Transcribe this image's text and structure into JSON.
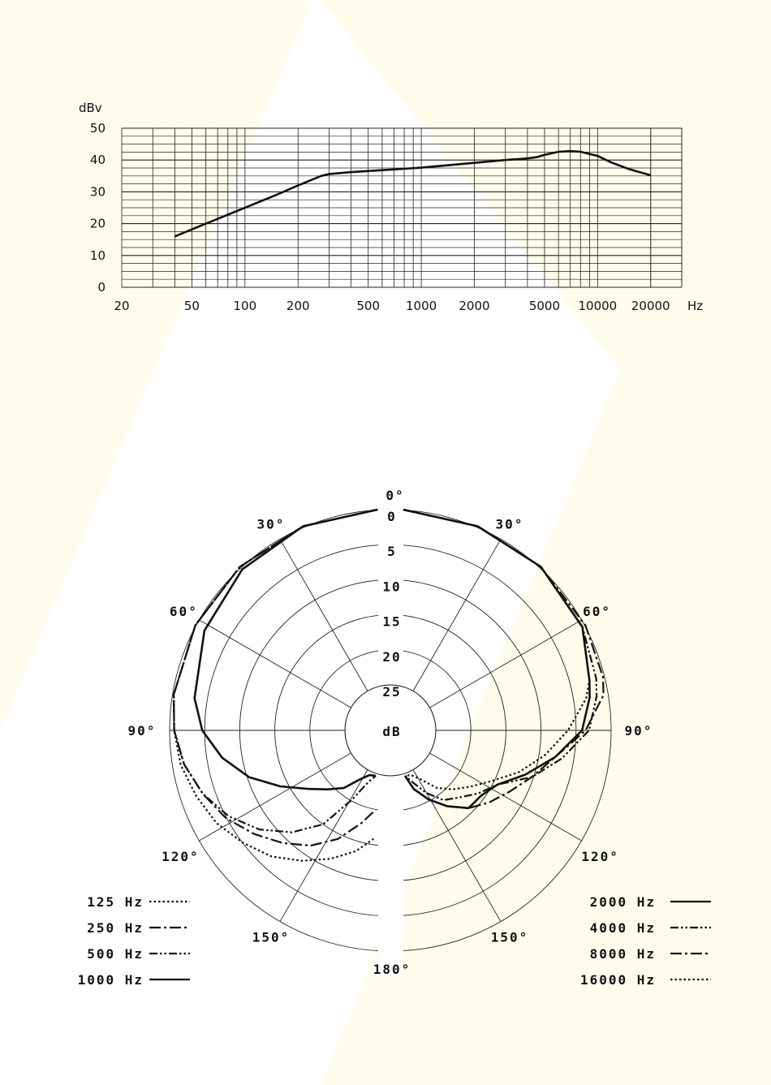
{
  "colors": {
    "background_tint": "#fffcec",
    "ink": "#111111",
    "grid": "#222222"
  },
  "chart_data": [
    {
      "type": "line",
      "title": "",
      "xlabel": "Hz",
      "ylabel": "dBv",
      "xscale": "log",
      "xlim": [
        20,
        30000
      ],
      "ylim": [
        0,
        50
      ],
      "x_tick_labels": [
        "20",
        "50",
        "100",
        "200",
        "500",
        "1000",
        "2000",
        "5000",
        "10000",
        "20000"
      ],
      "y_tick_labels": [
        "0",
        "10",
        "20",
        "30",
        "40",
        "50"
      ],
      "grid": true,
      "series": [
        {
          "x": [
            40,
            60,
            100,
            150,
            200,
            270,
            300,
            400,
            600,
            1000,
            2000,
            3000,
            4000,
            4500,
            5000,
            6000,
            7000,
            8000,
            10000,
            12000,
            15000,
            20000
          ],
          "y": [
            16,
            20,
            25,
            29,
            32,
            35,
            35.6,
            36.2,
            36.8,
            37.6,
            39.1,
            40,
            40.5,
            40.9,
            41.6,
            42.6,
            42.8,
            42.6,
            41.3,
            39.2,
            37.2,
            35.2
          ]
        }
      ]
    },
    {
      "type": "polar",
      "title": "",
      "radial_unit_label": "dB",
      "radial_tick_labels": [
        "0",
        "5",
        "10",
        "15",
        "20",
        "25"
      ],
      "angle_labels": [
        "0°",
        "30°",
        "60°",
        "90°",
        "120°",
        "150°",
        "180°"
      ],
      "grid": true,
      "series": [
        {
          "name": "125 Hz",
          "style": "dotted",
          "side": "left",
          "points": [
            [
              0,
              0
            ],
            [
              20,
              0.5
            ],
            [
              40,
              1
            ],
            [
              60,
              1.5
            ],
            [
              80,
              2
            ],
            [
              90,
              2.5
            ],
            [
              100,
              3
            ],
            [
              110,
              4
            ],
            [
              120,
              5
            ],
            [
              130,
              6.5
            ],
            [
              140,
              8
            ],
            [
              150,
              10
            ],
            [
              160,
              12
            ],
            [
              170,
              14
            ],
            [
              178,
              16
            ]
          ]
        },
        {
          "name": "250 Hz",
          "style": "dash-dot",
          "side": "left",
          "points": [
            [
              0,
              0
            ],
            [
              20,
              0.5
            ],
            [
              40,
              1
            ],
            [
              60,
              1.5
            ],
            [
              80,
              2
            ],
            [
              90,
              2.5
            ],
            [
              100,
              3.5
            ],
            [
              110,
              5
            ],
            [
              120,
              6.5
            ],
            [
              130,
              8.5
            ],
            [
              140,
              10.5
            ],
            [
              150,
              12.5
            ],
            [
              160,
              15
            ],
            [
              170,
              18
            ],
            [
              178,
              20
            ]
          ]
        },
        {
          "name": "500 Hz",
          "style": "dash-dot-dot",
          "side": "left",
          "points": [
            [
              0,
              0
            ],
            [
              20,
              0.5
            ],
            [
              40,
              1
            ],
            [
              60,
              1.5
            ],
            [
              80,
              2
            ],
            [
              90,
              2.5
            ],
            [
              100,
              3.5
            ],
            [
              110,
              5
            ],
            [
              120,
              7
            ],
            [
              130,
              9.5
            ],
            [
              140,
              12.5
            ],
            [
              150,
              16
            ],
            [
              160,
              21
            ],
            [
              170,
              24
            ],
            [
              178,
              25
            ]
          ]
        },
        {
          "name": "1000 Hz",
          "style": "solid",
          "side": "left",
          "points": [
            [
              0,
              0
            ],
            [
              20,
              0.5
            ],
            [
              40,
              1.5
            ],
            [
              60,
              3
            ],
            [
              80,
              5
            ],
            [
              90,
              6.5
            ],
            [
              100,
              9
            ],
            [
              110,
              12
            ],
            [
              120,
              15.5
            ],
            [
              130,
              18.5
            ],
            [
              140,
              20.5
            ],
            [
              150,
              22
            ],
            [
              160,
              24
            ],
            [
              170,
              25
            ],
            [
              178,
              25
            ]
          ]
        },
        {
          "name": "2000 Hz",
          "style": "solid",
          "side": "right",
          "points": [
            [
              0,
              0
            ],
            [
              20,
              0.5
            ],
            [
              40,
              1
            ],
            [
              60,
              2
            ],
            [
              75,
              4
            ],
            [
              80,
              4.5
            ],
            [
              90,
              6
            ],
            [
              100,
              9.5
            ],
            [
              110,
              13
            ],
            [
              120,
              16
            ],
            [
              130,
              17
            ],
            [
              140,
              17
            ],
            [
              150,
              19
            ],
            [
              160,
              21
            ],
            [
              170,
              23
            ],
            [
              178,
              25
            ]
          ]
        },
        {
          "name": "4000 Hz",
          "style": "dash-dot-dot",
          "side": "right",
          "points": [
            [
              0,
              0
            ],
            [
              20,
              0.5
            ],
            [
              40,
              1
            ],
            [
              60,
              2
            ],
            [
              75,
              3
            ],
            [
              80,
              3.5
            ],
            [
              90,
              5
            ],
            [
              100,
              8.5
            ],
            [
              110,
              12
            ],
            [
              120,
              16
            ],
            [
              130,
              17.5
            ],
            [
              140,
              19
            ],
            [
              150,
              20
            ],
            [
              160,
              22
            ],
            [
              170,
              24
            ],
            [
              178,
              25
            ]
          ]
        },
        {
          "name": "8000 Hz",
          "style": "dash-dot",
          "side": "right",
          "points": [
            [
              0,
              0
            ],
            [
              20,
              0.5
            ],
            [
              40,
              1
            ],
            [
              60,
              1.5
            ],
            [
              75,
              2
            ],
            [
              80,
              2.5
            ],
            [
              90,
              5.5
            ],
            [
              100,
              9.5
            ],
            [
              110,
              12
            ],
            [
              120,
              14
            ],
            [
              130,
              15.5
            ],
            [
              140,
              17
            ],
            [
              150,
              19
            ],
            [
              160,
              21
            ],
            [
              170,
              23
            ],
            [
              178,
              25
            ]
          ]
        },
        {
          "name": "16000 Hz",
          "style": "dotted",
          "side": "right",
          "points": [
            [
              0,
              0
            ],
            [
              20,
              0.5
            ],
            [
              40,
              1
            ],
            [
              60,
              2
            ],
            [
              75,
              4
            ],
            [
              80,
              5
            ],
            [
              90,
              8
            ],
            [
              100,
              11
            ],
            [
              110,
              14
            ],
            [
              120,
              17
            ],
            [
              130,
              19
            ],
            [
              140,
              20.5
            ],
            [
              150,
              22
            ],
            [
              160,
              24
            ],
            [
              170,
              25
            ],
            [
              178,
              25
            ]
          ]
        }
      ]
    }
  ]
}
